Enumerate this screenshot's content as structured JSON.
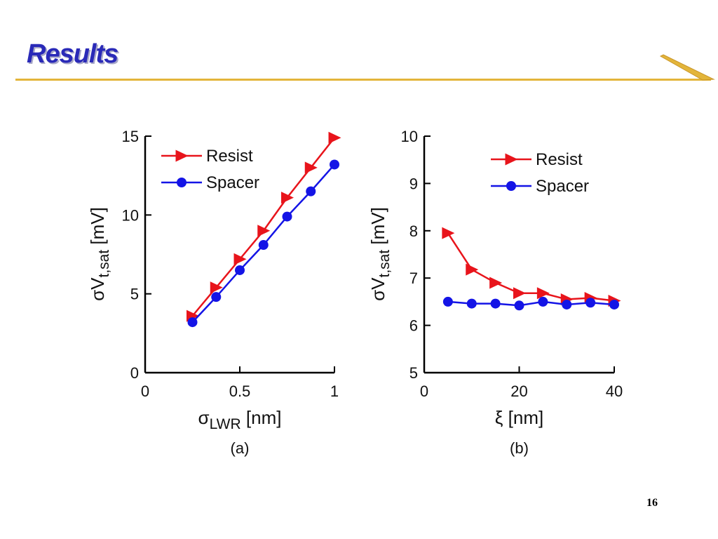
{
  "slide": {
    "title": "Results",
    "page_number": "16",
    "accent_color": "#e3b53a",
    "title_color": "#2a2ab8"
  },
  "chart_data": [
    {
      "type": "line",
      "panel_label": "(a)",
      "xlabel": {
        "symbol": "σ",
        "subscript": "LWR",
        "unit": " [nm]"
      },
      "ylabel": {
        "symbol": "σV",
        "subscript": "t,sat",
        "unit": " [mV]"
      },
      "xlim": [
        0,
        1
      ],
      "ylim": [
        0,
        15
      ],
      "xticks": [
        {
          "value": 0,
          "label": "0"
        },
        {
          "value": 0.5,
          "label": "0.5"
        },
        {
          "value": 1,
          "label": "1"
        }
      ],
      "yticks": [
        {
          "value": 0,
          "label": "0"
        },
        {
          "value": 5,
          "label": "5"
        },
        {
          "value": 10,
          "label": "10"
        },
        {
          "value": 15,
          "label": "15"
        }
      ],
      "grid": false,
      "legend_position": "top-left",
      "series": [
        {
          "name": "Resist",
          "color": "#e8141b",
          "marker": "triangle-right",
          "x": [
            0.25,
            0.375,
            0.5,
            0.625,
            0.75,
            0.875,
            1.0
          ],
          "y": [
            3.6,
            5.4,
            7.2,
            9.0,
            11.1,
            13.0,
            14.9
          ]
        },
        {
          "name": "Spacer",
          "color": "#1414e6",
          "marker": "circle",
          "x": [
            0.25,
            0.375,
            0.5,
            0.625,
            0.75,
            0.875,
            1.0
          ],
          "y": [
            3.2,
            4.8,
            6.5,
            8.1,
            9.9,
            11.5,
            13.2
          ]
        }
      ]
    },
    {
      "type": "line",
      "panel_label": "(b)",
      "xlabel": {
        "symbol": "ξ",
        "subscript": "",
        "unit": " [nm]"
      },
      "ylabel": {
        "symbol": "σV",
        "subscript": "t,sat",
        "unit": " [mV]"
      },
      "xlim": [
        0,
        40
      ],
      "ylim": [
        5,
        10
      ],
      "xticks": [
        {
          "value": 0,
          "label": "0"
        },
        {
          "value": 20,
          "label": "20"
        },
        {
          "value": 40,
          "label": "40"
        }
      ],
      "yticks": [
        {
          "value": 5,
          "label": "5"
        },
        {
          "value": 6,
          "label": "6"
        },
        {
          "value": 7,
          "label": "7"
        },
        {
          "value": 8,
          "label": "8"
        },
        {
          "value": 9,
          "label": "9"
        },
        {
          "value": 10,
          "label": "10"
        }
      ],
      "grid": false,
      "legend_position": "top-right",
      "series": [
        {
          "name": "Resist",
          "color": "#e8141b",
          "marker": "triangle-right",
          "x": [
            5,
            10,
            15,
            20,
            25,
            30,
            35,
            40
          ],
          "y": [
            7.95,
            7.18,
            6.9,
            6.68,
            6.68,
            6.55,
            6.58,
            6.52
          ]
        },
        {
          "name": "Spacer",
          "color": "#1414e6",
          "marker": "circle",
          "x": [
            5,
            10,
            15,
            20,
            25,
            30,
            35,
            40
          ],
          "y": [
            6.5,
            6.46,
            6.46,
            6.42,
            6.5,
            6.44,
            6.48,
            6.44
          ]
        }
      ]
    }
  ]
}
